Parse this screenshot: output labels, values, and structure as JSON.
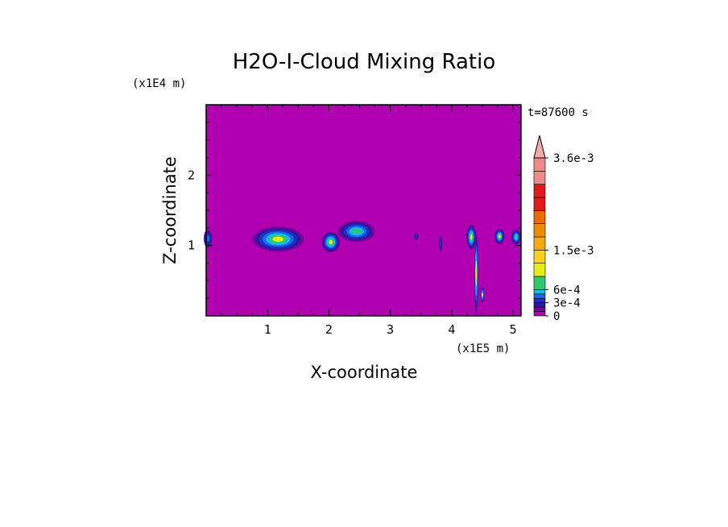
{
  "chart_data": {
    "type": "heatmap",
    "title": "H2O-I-Cloud Mixing Ratio",
    "xlabel": "X-coordinate",
    "ylabel": "Z-coordinate",
    "x_unit": "(x1E5 m)",
    "y_unit": "(x1E4 m)",
    "time_label": "t=87600 s",
    "xlim": [
      0,
      5.13
    ],
    "ylim": [
      0,
      3.0
    ],
    "x_ticks": [
      "1",
      "2",
      "3",
      "4",
      "5"
    ],
    "y_ticks": [
      "1",
      "2"
    ],
    "x_tick_values": [
      1,
      2,
      3,
      4,
      5
    ],
    "y_tick_values": [
      1,
      2
    ],
    "x_minor_step": 0.25,
    "y_minor_step": 0.25,
    "background_level_color": "#b000b0",
    "colorbar": {
      "levels": [
        0,
        0.0001,
        0.0002,
        0.0003,
        0.0004,
        0.0005,
        0.0006,
        0.0009,
        0.0012,
        0.0015,
        0.0018,
        0.0021,
        0.0024,
        0.0027,
        0.003,
        0.0033,
        0.0036
      ],
      "colors": [
        "#b000b0",
        "#7a00a0",
        "#2a1a9a",
        "#1e2ec8",
        "#1a6ae6",
        "#16b8f0",
        "#2ec86e",
        "#e6ee1a",
        "#f8d020",
        "#f8a810",
        "#f08a00",
        "#ee6a00",
        "#e01a1a",
        "#e01a1a",
        "#f08a8a",
        "#f08a8a"
      ],
      "extend_top_color": "#f4a8a8",
      "tick_labels": [
        "3.6e-3",
        "1.5e-3",
        "6e-4",
        "3e-4",
        "0"
      ],
      "tick_values": [
        0.0036,
        0.0015,
        0.0006,
        0.0003,
        0
      ]
    },
    "features": [
      {
        "x": 0.03,
        "z": 1.1,
        "rx": 0.07,
        "rz": 0.13,
        "peak": 0.0004
      },
      {
        "x": 1.17,
        "z": 1.09,
        "rx": 0.42,
        "rz": 0.18,
        "peak": 0.0009
      },
      {
        "x": 2.03,
        "z": 1.05,
        "rx": 0.15,
        "rz": 0.15,
        "peak": 0.0009
      },
      {
        "x": 2.45,
        "z": 1.2,
        "rx": 0.3,
        "rz": 0.15,
        "peak": 0.0006
      },
      {
        "x": 3.42,
        "z": 1.13,
        "rx": 0.04,
        "rz": 0.05,
        "peak": 0.0003
      },
      {
        "x": 3.82,
        "z": 1.03,
        "rx": 0.03,
        "rz": 0.12,
        "peak": 0.0003
      },
      {
        "x": 4.32,
        "z": 1.12,
        "rx": 0.08,
        "rz": 0.18,
        "peak": 0.0009
      },
      {
        "x": 4.4,
        "z": 0.6,
        "rx": 0.03,
        "rz": 0.6,
        "peak": 0.0012
      },
      {
        "x": 4.5,
        "z": 0.3,
        "rx": 0.03,
        "rz": 0.12,
        "peak": 0.0009
      },
      {
        "x": 4.78,
        "z": 1.13,
        "rx": 0.08,
        "rz": 0.11,
        "peak": 0.0009
      },
      {
        "x": 5.05,
        "z": 1.12,
        "rx": 0.08,
        "rz": 0.11,
        "peak": 0.0006
      }
    ]
  }
}
